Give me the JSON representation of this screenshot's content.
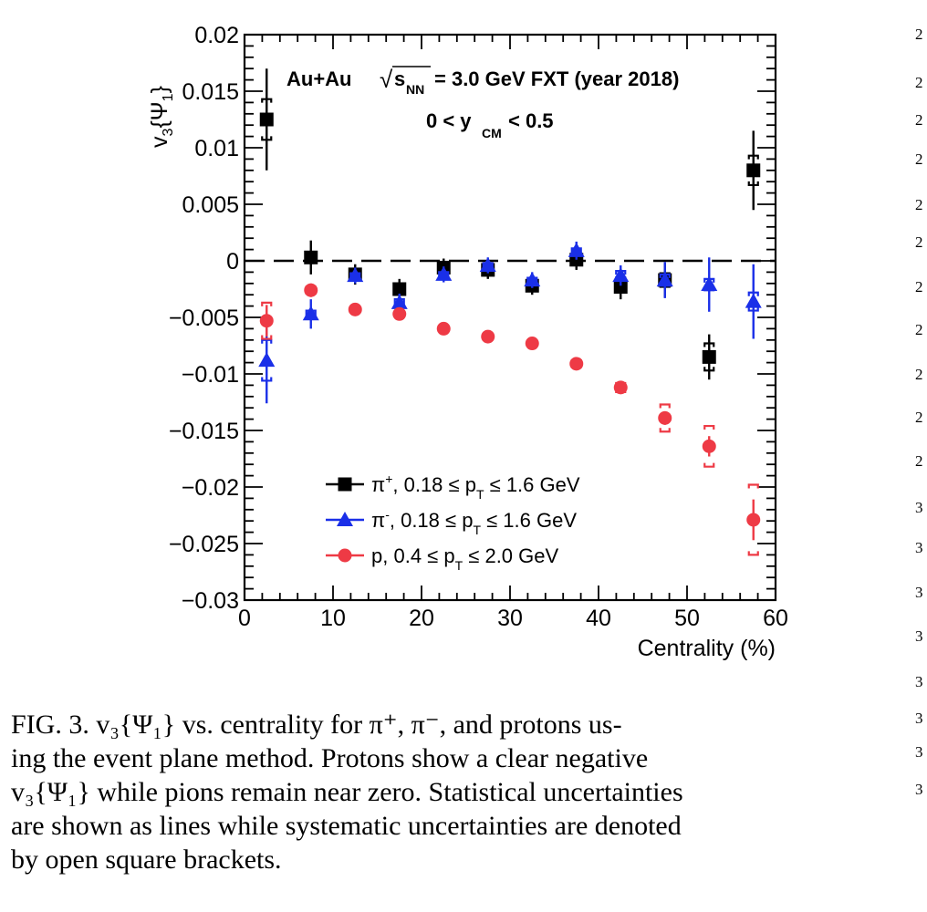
{
  "chart_data": {
    "type": "scatter",
    "title": "Au+Au",
    "energy_label": "= 3.0 GeV FXT (year 2018)",
    "sqrt_symbol": "√",
    "energy_var": "s",
    "energy_sub": "NN",
    "rapidity_label": "0 < y",
    "rapidity_sub": "CM",
    "rapidity_tail": "< 0.5",
    "xlabel": "Centrality (%)",
    "ylabel": "v",
    "ylabel_sub": "3",
    "ylabel_brace": "{Ψ",
    "ylabel_sub2": "1",
    "ylabel_end": "}",
    "xlim": [
      0,
      60
    ],
    "ylim": [
      -0.03,
      0.02
    ],
    "x_ticks": [
      "0",
      "10",
      "20",
      "30",
      "40",
      "50",
      "60"
    ],
    "y_ticks": [
      "0.02",
      "0.015",
      "0.01",
      "0.005",
      "0",
      "−0.005",
      "−0.01",
      "−0.015",
      "−0.02",
      "−0.025",
      "−0.03"
    ],
    "zero_line": true,
    "legend_position": "bottom-left",
    "series": [
      {
        "name": "π⁺, 0.18 ≤ pT ≤ 1.6 GeV",
        "legend_a": "π",
        "legend_sup": "+",
        "legend_b": ", 0.18 ≤ p",
        "legend_sub": "T",
        "legend_c": " ≤ 1.6 GeV",
        "marker": "square",
        "color": "#000000",
        "x": [
          2.5,
          7.5,
          12.5,
          17.5,
          22.5,
          27.5,
          32.5,
          37.5,
          42.5,
          47.5,
          52.5,
          57.5
        ],
        "y": [
          0.0125,
          0.0003,
          -0.0012,
          -0.0025,
          -0.0006,
          -0.0008,
          -0.0022,
          0.0001,
          -0.0023,
          -0.0017,
          -0.0085,
          0.008
        ],
        "stat_err": [
          0.0045,
          0.0015,
          0.0009,
          0.0009,
          0.0008,
          0.0008,
          0.0008,
          0.0009,
          0.0011,
          0.0015,
          0.002,
          0.0035
        ],
        "sys_err": [
          0.0018,
          0.0004,
          0.0003,
          0.0003,
          0.0002,
          0.0002,
          0.0003,
          0.0003,
          0.0005,
          0.0006,
          0.0012,
          0.0013
        ]
      },
      {
        "name": "π⁻, 0.18 ≤ pT ≤ 1.6 GeV",
        "legend_a": "π",
        "legend_sup": "-",
        "legend_b": ", 0.18 ≤ p",
        "legend_sub": "T",
        "legend_c": " ≤ 1.6 GeV",
        "marker": "triangle",
        "color": "#1a2fe8",
        "x": [
          2.5,
          7.5,
          12.5,
          17.5,
          22.5,
          27.5,
          32.5,
          37.5,
          42.5,
          47.5,
          52.5,
          57.5
        ],
        "y": [
          -0.0088,
          -0.0047,
          -0.0013,
          -0.0037,
          -0.0012,
          -0.0004,
          -0.0017,
          0.0009,
          -0.0013,
          -0.0017,
          -0.0021,
          -0.0036
        ],
        "stat_err": [
          0.0038,
          0.0013,
          0.0007,
          0.0008,
          0.0007,
          0.0007,
          0.0007,
          0.0008,
          0.0009,
          0.0016,
          0.0024,
          0.0033
        ],
        "sys_err": [
          0.0018,
          0.0003,
          0.0002,
          0.0003,
          0.0002,
          0.0002,
          0.0002,
          0.0002,
          0.0004,
          0.0005,
          0.0005,
          0.0008
        ]
      },
      {
        "name": "p, 0.4 ≤ pT ≤ 2.0 GeV",
        "legend_a": "p",
        "legend_sup": "",
        "legend_b": ", 0.4 ≤ p",
        "legend_sub": "T",
        "legend_c": " ≤ 2.0 GeV",
        "marker": "circle",
        "color": "#ee3a45",
        "x": [
          2.5,
          7.5,
          12.5,
          17.5,
          22.5,
          27.5,
          32.5,
          37.5,
          42.5,
          47.5,
          52.5,
          57.5
        ],
        "y": [
          -0.0053,
          -0.0026,
          -0.0043,
          -0.0047,
          -0.006,
          -0.0067,
          -0.0073,
          -0.0091,
          -0.0112,
          -0.0139,
          -0.0164,
          -0.0229
        ],
        "stat_err": [
          0.0014,
          0.0006,
          0.0003,
          0.0003,
          0.0003,
          0.0003,
          0.0003,
          0.0004,
          0.0004,
          0.0006,
          0.0009,
          0.0018
        ],
        "sys_err": [
          0.0016,
          0.0003,
          0.0002,
          0.0002,
          0.0002,
          0.0002,
          0.0002,
          0.0003,
          0.0004,
          0.0012,
          0.0018,
          0.0031
        ]
      }
    ]
  },
  "caption": {
    "lines": [
      "FIG. 3.  v₃{Ψ₁} vs.  centrality for π⁺, π⁻, and protons us-",
      "ing the event plane method.  Protons show a clear negative",
      "v₃{Ψ₁} while pions remain near zero. Statistical uncertainties",
      "are shown as lines while systematic uncertainties are denoted",
      "by open square brackets."
    ]
  },
  "margin_line_numbers": [
    "2",
    "2",
    "2",
    "2",
    "2",
    "2",
    "2",
    "2",
    "2",
    "2",
    "2",
    "3",
    "3",
    "3",
    "3",
    "3",
    "3",
    "3",
    "3"
  ]
}
